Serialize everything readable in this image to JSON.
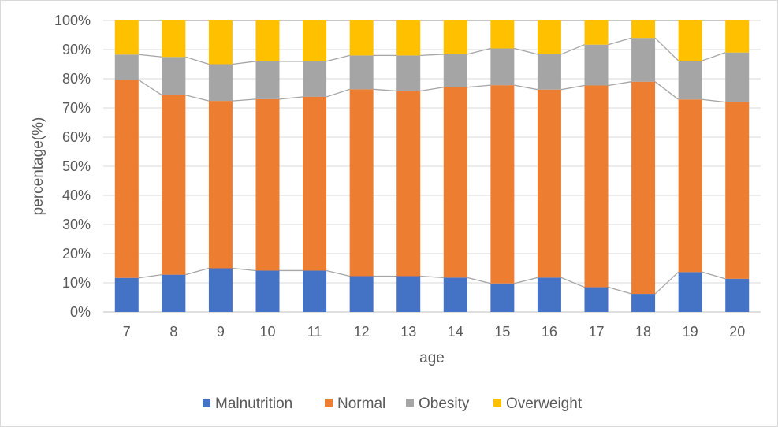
{
  "chart_data": {
    "type": "bar",
    "stacked": "percent",
    "title": "",
    "xlabel": "age",
    "ylabel": "percentage(%)",
    "ylim": [
      0,
      100
    ],
    "yticks": [
      "0%",
      "10%",
      "20%",
      "30%",
      "40%",
      "50%",
      "60%",
      "70%",
      "80%",
      "90%",
      "100%"
    ],
    "grid": "horizontal",
    "legend_position": "bottom",
    "series_lines": true,
    "categories": [
      "7",
      "8",
      "9",
      "10",
      "11",
      "12",
      "13",
      "14",
      "15",
      "16",
      "17",
      "18",
      "19",
      "20"
    ],
    "series": [
      {
        "name": "Malnutrition",
        "color": "#4472c4",
        "values": [
          11.7,
          12.8,
          15.0,
          14.2,
          14.2,
          12.3,
          12.3,
          11.8,
          9.8,
          11.8,
          8.5,
          6.2,
          13.7,
          11.4
        ]
      },
      {
        "name": "Normal",
        "color": "#ed7d31",
        "values": [
          67.9,
          61.6,
          57.4,
          58.8,
          59.6,
          64.1,
          63.5,
          65.3,
          68.0,
          64.5,
          69.2,
          72.8,
          59.2,
          60.6
        ]
      },
      {
        "name": "Obesity",
        "color": "#a5a5a5",
        "values": [
          8.7,
          13.1,
          12.6,
          13.0,
          12.2,
          11.6,
          12.2,
          11.3,
          12.6,
          12.1,
          14.0,
          15.0,
          13.3,
          17.0
        ]
      },
      {
        "name": "Overweight",
        "color": "#ffc000",
        "values": [
          11.7,
          12.5,
          15.0,
          14.0,
          14.0,
          12.0,
          12.0,
          11.6,
          9.6,
          11.6,
          8.3,
          6.0,
          13.8,
          11.0
        ]
      }
    ]
  }
}
